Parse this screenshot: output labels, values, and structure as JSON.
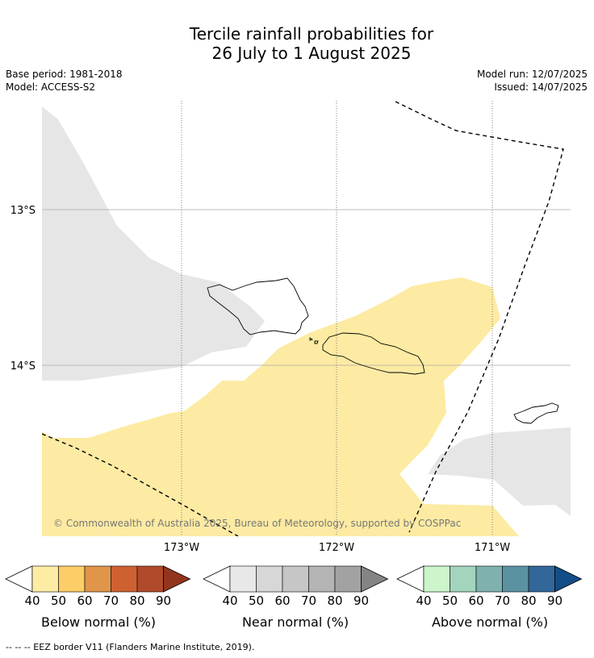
{
  "title_line1": "Tercile rainfall probabilities for",
  "title_line2": "26 July to 1 August 2025",
  "meta_left": [
    "Base period: 1981-2018",
    "Model: ACCESS-S2"
  ],
  "meta_right": [
    "Model run: 12/07/2025",
    "Issued: 14/07/2025"
  ],
  "map": {
    "lat_labels": [
      "13°S",
      "14°S"
    ],
    "lon_labels": [
      "173°W",
      "172°W",
      "171°W"
    ],
    "copyright": "© Commonwealth of Australia 2025, Bureau of Meteorology, supported by COSPPac",
    "colors": {
      "below_50": "#fdeba3",
      "near_40": "#e6e6e6",
      "eez_line": "#000000"
    }
  },
  "colorbars": [
    {
      "title": "Below normal (%)",
      "ticks": [
        "40",
        "50",
        "60",
        "70",
        "80",
        "90"
      ],
      "colors": [
        "#fdeca4",
        "#fdcd67",
        "#e0954a",
        "#cd6132",
        "#b04a2a",
        "#93351e"
      ]
    },
    {
      "title": "Near normal (%)",
      "ticks": [
        "40",
        "50",
        "60",
        "70",
        "80",
        "90"
      ],
      "colors": [
        "#e8e8e8",
        "#d7d7d7",
        "#c6c6c6",
        "#b4b4b4",
        "#a2a2a2",
        "#848484"
      ]
    },
    {
      "title": "Above normal (%)",
      "ticks": [
        "40",
        "50",
        "60",
        "70",
        "80",
        "90"
      ],
      "colors": [
        "#ccf5cc",
        "#a3d4bd",
        "#7fb2af",
        "#5b92a2",
        "#336799",
        "#134d87"
      ]
    }
  ],
  "footer": "--  --  -- EEZ border V11 (Flanders Marine Institute, 2019)."
}
